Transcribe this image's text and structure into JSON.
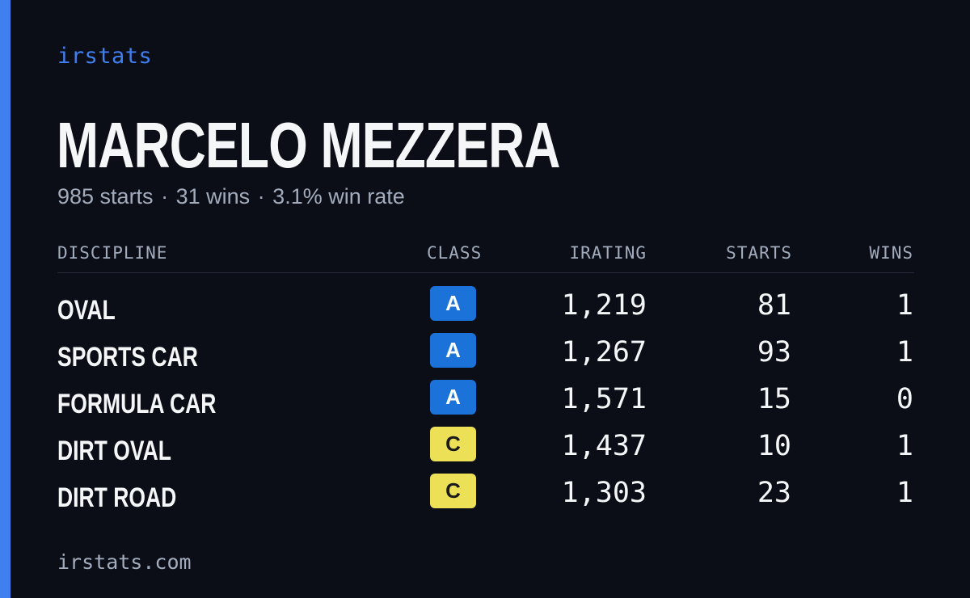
{
  "brand": {
    "logo_text": "irstats",
    "footer_url": "irstats.com"
  },
  "colors": {
    "background": "#0b0e16",
    "accent": "#3f7fef",
    "text_primary": "#f5f6f8",
    "text_muted": "#a3acbd",
    "class_a_bg": "#1b73da",
    "class_a_fg": "#ffffff",
    "class_c_bg": "#ece156",
    "class_c_fg": "#1a1a1a"
  },
  "driver": {
    "name": "MARCELO MEZZERA",
    "starts_text": "985 starts",
    "wins_text": "31 wins",
    "win_rate_text": "3.1% win rate",
    "separator": "·"
  },
  "table": {
    "headers": {
      "discipline": "DISCIPLINE",
      "class": "CLASS",
      "irating": "IRATING",
      "starts": "STARTS",
      "wins": "WINS"
    },
    "rows": [
      {
        "discipline": "OVAL",
        "class": "A",
        "irating": "1,219",
        "starts": "81",
        "wins": "1"
      },
      {
        "discipline": "SPORTS CAR",
        "class": "A",
        "irating": "1,267",
        "starts": "93",
        "wins": "1"
      },
      {
        "discipline": "FORMULA CAR",
        "class": "A",
        "irating": "1,571",
        "starts": "15",
        "wins": "0"
      },
      {
        "discipline": "DIRT OVAL",
        "class": "C",
        "irating": "1,437",
        "starts": "10",
        "wins": "1"
      },
      {
        "discipline": "DIRT ROAD",
        "class": "C",
        "irating": "1,303",
        "starts": "23",
        "wins": "1"
      }
    ]
  }
}
